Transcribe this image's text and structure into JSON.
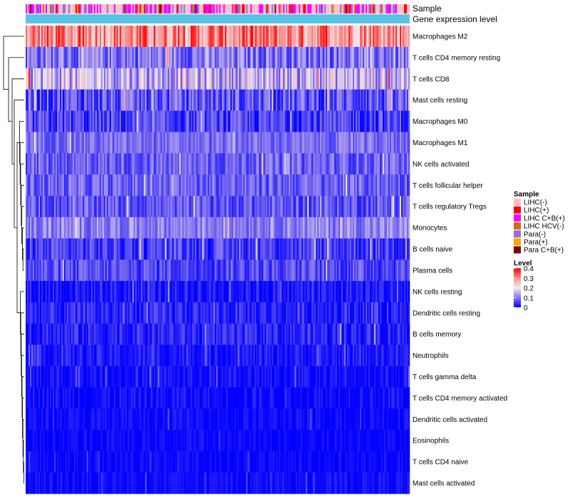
{
  "chart_data": {
    "type": "heatmap",
    "title": "",
    "annotations": [
      {
        "name": "Sample",
        "kind": "categorical"
      },
      {
        "name": "Gene expression level",
        "kind": "constant",
        "color": "#5bc4e6"
      }
    ],
    "rows": [
      {
        "label": "Macrophages M2",
        "mean": 0.3,
        "spread": 0.1
      },
      {
        "label": "T cells CD4 memory resting",
        "mean": 0.1,
        "spread": 0.07
      },
      {
        "label": "T cells CD8",
        "mean": 0.16,
        "spread": 0.1
      },
      {
        "label": "Mast cells resting",
        "mean": 0.07,
        "spread": 0.07
      },
      {
        "label": "Macrophages M0",
        "mean": 0.05,
        "spread": 0.06
      },
      {
        "label": "Macrophages M1",
        "mean": 0.09,
        "spread": 0.04
      },
      {
        "label": "NK cells activated",
        "mean": 0.08,
        "spread": 0.05
      },
      {
        "label": "T cells follicular helper",
        "mean": 0.08,
        "spread": 0.05
      },
      {
        "label": "T cells regulatory  Tregs",
        "mean": 0.07,
        "spread": 0.05
      },
      {
        "label": "Monocytes",
        "mean": 0.11,
        "spread": 0.05
      },
      {
        "label": "B cells naive",
        "mean": 0.05,
        "spread": 0.05
      },
      {
        "label": "Plasma cells",
        "mean": 0.06,
        "spread": 0.05
      },
      {
        "label": "NK cells resting",
        "mean": 0.02,
        "spread": 0.04
      },
      {
        "label": "Dendritic cells resting",
        "mean": 0.03,
        "spread": 0.04
      },
      {
        "label": "B cells memory",
        "mean": 0.03,
        "spread": 0.04
      },
      {
        "label": "Neutrophils",
        "mean": 0.02,
        "spread": 0.03
      },
      {
        "label": "T cells gamma delta",
        "mean": 0.01,
        "spread": 0.03
      },
      {
        "label": "T cells CD4 memory activated",
        "mean": 0.01,
        "spread": 0.03
      },
      {
        "label": "Dendritic cells activated",
        "mean": 0.01,
        "spread": 0.02
      },
      {
        "label": "Eosinophils",
        "mean": 0.005,
        "spread": 0.02
      },
      {
        "label": "T cells CD4 naive",
        "mean": 0.005,
        "spread": 0.02
      },
      {
        "label": "Mast cells activated",
        "mean": 0.01,
        "spread": 0.02
      }
    ],
    "n_samples": 270,
    "color_scale": {
      "stops": [
        {
          "value": 0,
          "color": "#0000ff"
        },
        {
          "value": 0.1,
          "color": "#8877ee"
        },
        {
          "value": 0.2,
          "color": "#f5eaf2"
        },
        {
          "value": 0.3,
          "color": "#f8908c"
        },
        {
          "value": 0.4,
          "color": "#ff0000"
        }
      ]
    },
    "legends": {
      "sample": {
        "title": "Sample",
        "items": [
          {
            "label": "LIHC(-)",
            "color": "#ffc0cb"
          },
          {
            "label": "LIHC(+)",
            "color": "#ff0000"
          },
          {
            "label": "LIHC C+B(+)",
            "color": "#ff00ff"
          },
          {
            "label": "LIHC HCV(-)",
            "color": "#d2691e"
          },
          {
            "label": "Para(-)",
            "color": "#9370db"
          },
          {
            "label": "Para(+)",
            "color": "#ffa500"
          },
          {
            "label": "Para C+B(+)",
            "color": "#800000"
          }
        ]
      },
      "level": {
        "title": "Level",
        "ticks": [
          "0.4",
          "0.3",
          "0.2",
          "0.1",
          "0"
        ],
        "tick_values": [
          0.4,
          0.3,
          0.2,
          0.1,
          0
        ]
      }
    },
    "dendrogram": "row"
  }
}
